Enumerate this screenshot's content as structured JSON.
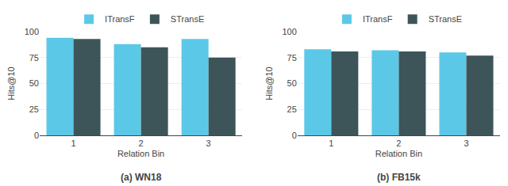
{
  "chart_data": [
    {
      "type": "bar",
      "categories": [
        1,
        2,
        3
      ],
      "series": [
        {
          "name": "ITransF",
          "color": "#5bc8e8",
          "values": [
            94,
            88,
            93
          ]
        },
        {
          "name": "STransE",
          "color": "#3d5559",
          "values": [
            93,
            85,
            75
          ]
        }
      ],
      "xlabel": "Relation Bin",
      "ylabel": "Hits@10",
      "caption": "(a) WN18",
      "ylim": [
        0,
        100
      ],
      "yticks": [
        0,
        25,
        50,
        75,
        100
      ],
      "grid": true,
      "legend": "top"
    },
    {
      "type": "bar",
      "categories": [
        1,
        2,
        3
      ],
      "series": [
        {
          "name": "ITransF",
          "color": "#5bc8e8",
          "values": [
            83,
            82,
            80
          ]
        },
        {
          "name": "STransE",
          "color": "#3d5559",
          "values": [
            81,
            81,
            77
          ]
        }
      ],
      "xlabel": "Relation Bin",
      "ylabel": "Hits@10",
      "caption": "(b) FB15k",
      "ylim": [
        0,
        100
      ],
      "yticks": [
        0,
        25,
        50,
        75,
        100
      ],
      "grid": true,
      "legend": "top"
    }
  ]
}
